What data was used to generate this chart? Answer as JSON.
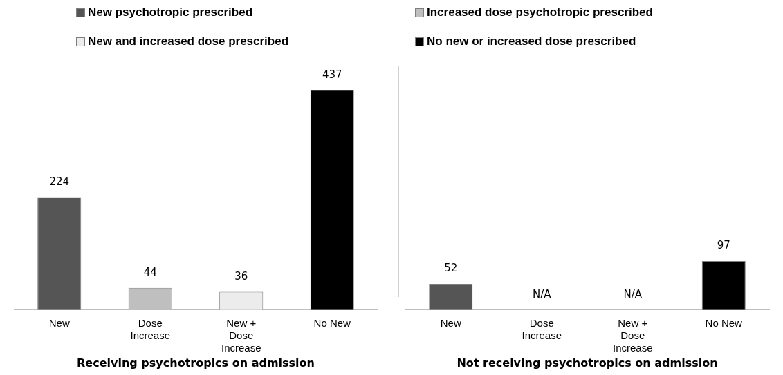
{
  "chart_data": [
    {
      "type": "bar",
      "xlabel": "Receiving psychotropics on admission",
      "categories": [
        "New",
        "Dose Increase",
        "New + Dose Increase",
        "No New"
      ],
      "legend": "top",
      "data_labels": true,
      "series": [
        {
          "name": "New psychotropic prescribed",
          "color": "#555555",
          "values": [
            224,
            null,
            null,
            null
          ]
        },
        {
          "name": "Increased dose psychotropic prescribed",
          "color": "#bfbfbf",
          "values": [
            null,
            44,
            null,
            null
          ]
        },
        {
          "name": "New and increased dose prescribed",
          "color": "#ececec",
          "values": [
            null,
            null,
            36,
            null
          ]
        },
        {
          "name": "No new or increased dose prescribed",
          "color": "#000000",
          "values": [
            null,
            null,
            null,
            437
          ]
        }
      ]
    },
    {
      "type": "bar",
      "xlabel": "Not receiving psychotropics on admission",
      "categories": [
        "New",
        "Dose Increase",
        "New + Dose Increase",
        "No New"
      ],
      "series": [
        {
          "color": "#555555",
          "values": [
            52,
            null,
            null,
            null
          ],
          "value_labels": [
            "52",
            null,
            null,
            null
          ]
        },
        {
          "color": "#bfbfbf",
          "values": [
            null,
            null,
            null,
            null
          ],
          "value_labels": [
            null,
            "N/A",
            null,
            null
          ]
        },
        {
          "color": "#ececec",
          "values": [
            null,
            null,
            null,
            null
          ],
          "value_labels": [
            null,
            null,
            "N/A",
            null
          ]
        },
        {
          "color": "#000000",
          "values": [
            null,
            null,
            null,
            97
          ],
          "value_labels": [
            null,
            null,
            null,
            "97"
          ]
        }
      ]
    }
  ]
}
